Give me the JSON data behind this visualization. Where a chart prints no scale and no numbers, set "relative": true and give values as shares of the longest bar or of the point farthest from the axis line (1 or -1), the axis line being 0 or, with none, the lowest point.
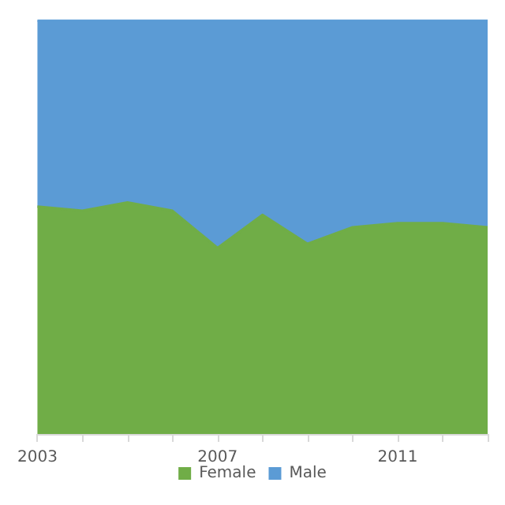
{
  "chart_data": {
    "type": "area",
    "stacked": true,
    "relative": true,
    "categories": [
      "2003",
      null,
      null,
      null,
      "2007",
      null,
      null,
      null,
      "2011",
      null,
      null
    ],
    "series": [
      {
        "name": "Female",
        "color": "#70ad47",
        "values": [
          0.55,
          0.54,
          0.56,
          0.54,
          0.45,
          0.53,
          0.46,
          0.5,
          0.51,
          0.51,
          0.5
        ]
      },
      {
        "name": "Male",
        "color": "#5b9bd5",
        "values": [
          0.45,
          0.46,
          0.44,
          0.46,
          0.55,
          0.47,
          0.54,
          0.5,
          0.49,
          0.49,
          0.5
        ]
      }
    ],
    "legend": "bottom",
    "grid": false
  }
}
